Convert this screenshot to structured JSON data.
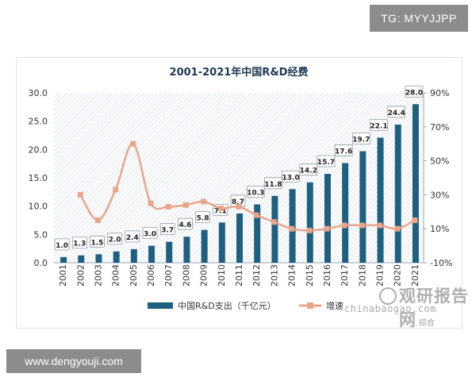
{
  "badges": {
    "top_right": "TG: MYYJJPP",
    "bottom_left": "www.dengyouji.com"
  },
  "watermark": {
    "brand": "观研报告网",
    "url": "chinabaogao.com",
    "corner": "综合"
  },
  "colors": {
    "bar": "#1f5f7f",
    "line": "#e8a58a",
    "hatch": "#dde4ea",
    "title": "#1f3b55"
  },
  "chart_data": {
    "type": "bar",
    "title": "2001-2021年中国R&D经费",
    "categories": [
      "2001",
      "2002",
      "2003",
      "2004",
      "2005",
      "2006",
      "2007",
      "2008",
      "2009",
      "2010",
      "2011",
      "2012",
      "2013",
      "2014",
      "2015",
      "2016",
      "2017",
      "2018",
      "2019",
      "2020",
      "2021"
    ],
    "series": [
      {
        "name": "中国R&D支出（千亿元）",
        "type": "bar",
        "axis": "left",
        "values": [
          1.0,
          1.3,
          1.5,
          2.0,
          2.4,
          3.0,
          3.7,
          4.6,
          5.8,
          7.1,
          8.7,
          10.3,
          11.8,
          13.0,
          14.2,
          15.7,
          17.6,
          19.7,
          22.1,
          24.4,
          28.0
        ],
        "labels": [
          "1.0",
          "1.3",
          "1.5",
          "2.0",
          "2.4",
          "3.0",
          "3.7",
          "4.6",
          "5.8",
          "7.1",
          "8.7",
          "10.3",
          "11.8",
          "13.0",
          "14.2",
          "15.7",
          "17.6",
          "19.7",
          "22.1",
          "24.4",
          "28.0"
        ]
      },
      {
        "name": "增速",
        "type": "line",
        "axis": "right",
        "values": [
          null,
          30,
          15,
          33,
          60,
          25,
          23,
          24,
          26,
          22,
          23,
          18,
          14,
          10,
          9,
          10,
          12,
          12,
          12,
          10,
          15
        ]
      }
    ],
    "y_left": {
      "min": 0,
      "max": 30,
      "ticks": [
        "0.0",
        "5.0",
        "10.0",
        "15.0",
        "20.0",
        "25.0",
        "30.0"
      ],
      "tick_values": [
        0,
        5,
        10,
        15,
        20,
        25,
        30
      ]
    },
    "y_right": {
      "min": -10,
      "max": 90,
      "ticks": [
        "-10%",
        "10%",
        "30%",
        "50%",
        "70%",
        "90%"
      ],
      "tick_values": [
        -10,
        10,
        30,
        50,
        70,
        90
      ]
    },
    "legend": {
      "position": "bottom",
      "items": [
        "中国R&D支出（千亿元）",
        "增速"
      ]
    }
  }
}
